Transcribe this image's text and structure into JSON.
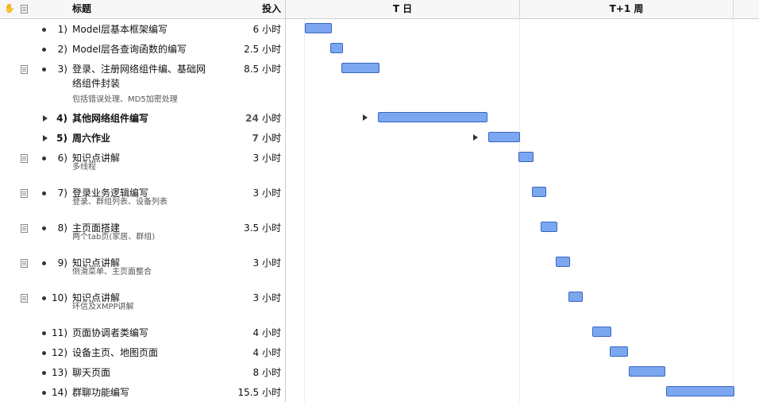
{
  "header": {
    "hand_icon": "hand-icon",
    "note_icon": "note-icon",
    "title_label": "标题",
    "effort_label": "投入",
    "periods": [
      "T 日",
      "T+1 周"
    ]
  },
  "tasks": [
    {
      "num": "1)",
      "title": "Model层基本框架编写",
      "effort": "6 小时",
      "note": "",
      "bold": false,
      "group": false,
      "has_note_icon": false,
      "start_day": 0,
      "duration_h": 6
    },
    {
      "num": "2)",
      "title": "Model层各查询函数的编写",
      "effort": "2.5 小时",
      "note": "",
      "bold": false,
      "group": false,
      "has_note_icon": false,
      "start_day": 0,
      "duration_h": 2.5
    },
    {
      "num": "3)",
      "title": "登录、注册网络组件编、基础网络组件封装",
      "effort": "8.5 小时",
      "note": "包括错误处理、MD5加密处理",
      "bold": false,
      "group": false,
      "has_note_icon": true,
      "start_day": 0,
      "duration_h": 8.5
    },
    {
      "num": "4)",
      "title": "其他网络组件编写",
      "effort": "24 小时",
      "note": "",
      "bold": true,
      "group": true,
      "has_note_icon": false,
      "start_day": 0,
      "duration_h": 24
    },
    {
      "num": "5)",
      "title": "周六作业",
      "effort": "7 小时",
      "note": "",
      "bold": true,
      "group": true,
      "has_note_icon": false,
      "start_day": 0,
      "duration_h": 7
    },
    {
      "num": "6)",
      "title": "知识点讲解",
      "effort": "3 小时",
      "note": "多线程",
      "bold": false,
      "group": false,
      "has_note_icon": true,
      "start_day": 1,
      "duration_h": 3
    },
    {
      "num": "7)",
      "title": "登录业务逻辑编写",
      "effort": "3 小时",
      "note": "登录、群组列表、设备列表",
      "bold": false,
      "group": false,
      "has_note_icon": true,
      "start_day": 1,
      "duration_h": 3
    },
    {
      "num": "8)",
      "title": "主页面搭建",
      "effort": "3.5 小时",
      "note": "两个tab页(家居、群组)",
      "bold": false,
      "group": false,
      "has_note_icon": true,
      "start_day": 1,
      "duration_h": 3.5
    },
    {
      "num": "9)",
      "title": "知识点讲解",
      "effort": "3 小时",
      "note": "侧滑菜单、主页面整合",
      "bold": false,
      "group": false,
      "has_note_icon": true,
      "start_day": 1,
      "duration_h": 3
    },
    {
      "num": "10)",
      "title": "知识点讲解",
      "effort": "3 小时",
      "note": "环信及XMPP讲解",
      "bold": false,
      "group": false,
      "has_note_icon": true,
      "start_day": 1,
      "duration_h": 3
    },
    {
      "num": "11)",
      "title": "页面协调者类编写",
      "effort": "4 小时",
      "note": "",
      "bold": false,
      "group": false,
      "has_note_icon": false,
      "start_day": 1,
      "duration_h": 4
    },
    {
      "num": "12)",
      "title": "设备主页、地图页面",
      "effort": "4 小时",
      "note": "",
      "bold": false,
      "group": false,
      "has_note_icon": false,
      "start_day": 1,
      "duration_h": 4
    },
    {
      "num": "13)",
      "title": "聊天页面",
      "effort": "8 小时",
      "note": "",
      "bold": false,
      "group": false,
      "has_note_icon": false,
      "start_day": 1,
      "duration_h": 8
    },
    {
      "num": "14)",
      "title": "群聊功能编写",
      "effort": "15.5 小时",
      "note": "",
      "bold": false,
      "group": false,
      "has_note_icon": false,
      "start_day": 1,
      "duration_h": 15.5
    }
  ],
  "colors": {
    "bar_fill": "#7aa7ef",
    "bar_border": "#3a66c2"
  }
}
